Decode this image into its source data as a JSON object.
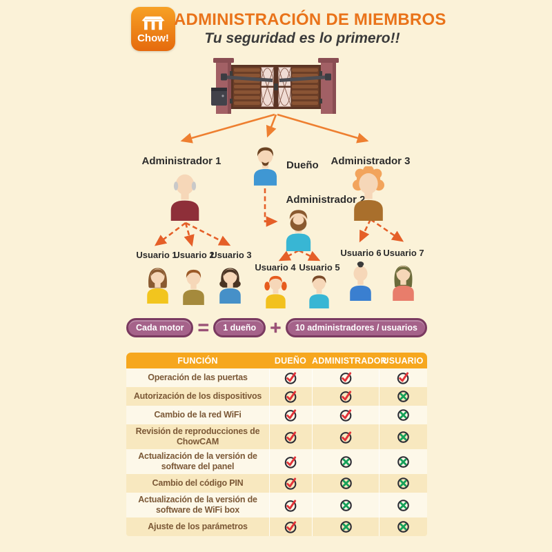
{
  "header": {
    "brand": "Chow!",
    "title": "ADMINISTRACIÓN DE MIEMBROS",
    "subtitle": "Tu seguridad es lo primero!!",
    "title_color": "#e9731a"
  },
  "diagram": {
    "owner": {
      "label": "Dueño",
      "hair_style": "goatee",
      "hair_color": "#6b4423",
      "shirt_color": "#3f97d3"
    },
    "admins": [
      {
        "label": "Administrador 1",
        "hair_style": "bald",
        "hair_color": "#c9c9c9",
        "shirt_color": "#8e2f39"
      },
      {
        "label": "Administrador 2",
        "hair_style": "beard",
        "hair_color": "#8a5a30",
        "shirt_color": "#38b6d4"
      },
      {
        "label": "Administrador 3",
        "hair_style": "curly",
        "hair_color": "#f2a45c",
        "shirt_color": "#a96f2c"
      }
    ],
    "users": [
      {
        "label": "Usuario 1",
        "hair_style": "bob",
        "hair_color": "#8a5a30",
        "shirt_color": "#f2c51e"
      },
      {
        "label": "Usuario 2",
        "hair_style": "short",
        "hair_color": "#9c5a28",
        "shirt_color": "#a58a3c"
      },
      {
        "label": "Usuario 3",
        "hair_style": "wavy",
        "hair_color": "#4a3423",
        "shirt_color": "#4690c8"
      },
      {
        "label": "Usuario 4",
        "hair_style": "pigtails",
        "hair_color": "#e65c1e",
        "shirt_color": "#f2c11e"
      },
      {
        "label": "Usuario 5",
        "hair_style": "short",
        "hair_color": "#7a4a28",
        "shirt_color": "#38b6d4"
      },
      {
        "label": "Usuario 6",
        "hair_style": "bun",
        "hair_color": "#3a3a3a",
        "shirt_color": "#3a7fd0"
      },
      {
        "label": "Usuario 7",
        "hair_style": "long",
        "hair_color": "#6b6b3b",
        "shirt_color": "#e87d6b"
      }
    ],
    "arrow_solid_color": "#ee7f30",
    "arrow_dashed_color": "#e55f28"
  },
  "formula": {
    "items": [
      {
        "type": "pill",
        "text": "Cada motor"
      },
      {
        "type": "op",
        "text": "="
      },
      {
        "type": "pill",
        "text": "1 dueño"
      },
      {
        "type": "op",
        "text": "+"
      },
      {
        "type": "pill",
        "text": "10 administradores / usuarios"
      }
    ],
    "pill_color": "#a5628a",
    "pill_border": "#7a3a60"
  },
  "table": {
    "headers": [
      "FUNCIÓN",
      "DUEÑO",
      "ADMINISTRADOR",
      "USUARIO"
    ],
    "rows": [
      {
        "funcion": "Operación de las puertas",
        "dueno": "check",
        "administrador": "check",
        "usuario": "check"
      },
      {
        "funcion": "Autorización de los dispositivos",
        "dueno": "check",
        "administrador": "check",
        "usuario": "cross"
      },
      {
        "funcion": "Cambio de la red WiFi",
        "dueno": "check",
        "administrador": "check",
        "usuario": "cross"
      },
      {
        "funcion": "Revisión de reproducciones de ChowCAM",
        "dueno": "check",
        "administrador": "check",
        "usuario": "cross"
      },
      {
        "funcion": "Actualización de la versión de software del panel",
        "dueno": "check",
        "administrador": "cross",
        "usuario": "cross"
      },
      {
        "funcion": "Cambio del código PIN",
        "dueno": "check",
        "administrador": "cross",
        "usuario": "cross"
      },
      {
        "funcion": "Actualización de la versión de software de WiFi box",
        "dueno": "check",
        "administrador": "cross",
        "usuario": "cross"
      },
      {
        "funcion": "Ajuste de los parámetros",
        "dueno": "check",
        "administrador": "cross",
        "usuario": "cross"
      }
    ],
    "colors": {
      "header_bg": "#f6a71e",
      "row_light": "#fdf8e9",
      "row_gold": "#f8e8bf",
      "check": "#e23339",
      "cross": "#16a15a",
      "ring": "#2d2d35",
      "text": "#7b5836"
    }
  }
}
